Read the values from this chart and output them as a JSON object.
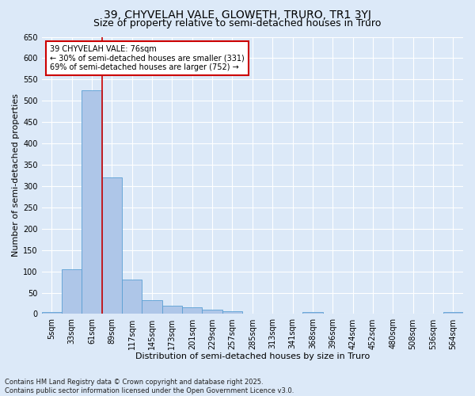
{
  "title": "39, CHYVELAH VALE, GLOWETH, TRURO, TR1 3YJ",
  "subtitle": "Size of property relative to semi-detached houses in Truro",
  "xlabel": "Distribution of semi-detached houses by size in Truro",
  "ylabel": "Number of semi-detached properties",
  "footnote": "Contains HM Land Registry data © Crown copyright and database right 2025.\nContains public sector information licensed under the Open Government Licence v3.0.",
  "categories": [
    "5sqm",
    "33sqm",
    "61sqm",
    "89sqm",
    "117sqm",
    "145sqm",
    "173sqm",
    "201sqm",
    "229sqm",
    "257sqm",
    "285sqm",
    "313sqm",
    "341sqm",
    "368sqm",
    "396sqm",
    "424sqm",
    "452sqm",
    "480sqm",
    "508sqm",
    "536sqm",
    "564sqm"
  ],
  "values": [
    5,
    105,
    525,
    320,
    80,
    32,
    20,
    15,
    10,
    7,
    0,
    0,
    0,
    5,
    0,
    0,
    0,
    0,
    0,
    0,
    4
  ],
  "bar_color": "#aec6e8",
  "bar_edge_color": "#5a9fd4",
  "property_line_index": 2,
  "property_size": "76sqm",
  "annotation_text": "39 CHYVELAH VALE: 76sqm\n← 30% of semi-detached houses are smaller (331)\n69% of semi-detached houses are larger (752) →",
  "annotation_box_color": "#ffffff",
  "annotation_box_edge": "#cc0000",
  "red_line_color": "#cc0000",
  "ylim": [
    0,
    650
  ],
  "yticks": [
    0,
    50,
    100,
    150,
    200,
    250,
    300,
    350,
    400,
    450,
    500,
    550,
    600,
    650
  ],
  "background_color": "#dce9f8",
  "grid_color": "#ffffff",
  "title_fontsize": 10,
  "subtitle_fontsize": 9,
  "axis_label_fontsize": 8,
  "tick_fontsize": 7,
  "annotation_fontsize": 7,
  "footnote_fontsize": 6
}
